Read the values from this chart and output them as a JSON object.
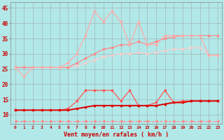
{
  "xlabel": "Vent moyen/en rafales ( km/h )",
  "background_color": "#b2e8e8",
  "grid_color": "#999999",
  "x": [
    0,
    1,
    2,
    3,
    4,
    5,
    6,
    7,
    8,
    9,
    10,
    11,
    12,
    13,
    14,
    15,
    16,
    17,
    18,
    19,
    20,
    21,
    22,
    23
  ],
  "line1_spiky": [
    25.5,
    22.5,
    25.5,
    25.5,
    25.5,
    25.5,
    27,
    30,
    36,
    44,
    40.5,
    44,
    40.5,
    33,
    40.5,
    33,
    33,
    36,
    36,
    36,
    36,
    36,
    29.5,
    29.5
  ],
  "line2_mid": [
    25.5,
    25.5,
    25.5,
    25.5,
    25.5,
    25.5,
    25.5,
    27,
    28.5,
    30,
    31.5,
    32,
    33,
    33,
    34,
    33,
    34,
    35,
    35.5,
    36,
    36,
    36,
    36,
    36
  ],
  "line3_smooth": [
    25.5,
    25.5,
    25.5,
    25.5,
    25.5,
    25.5,
    25.5,
    26,
    27,
    28,
    29,
    29.5,
    30,
    30,
    30.5,
    30,
    30.5,
    31,
    31.5,
    31.5,
    32,
    32,
    29.5,
    29.5
  ],
  "line4_spiky_red": [
    11.5,
    11.5,
    11.5,
    11.5,
    11.5,
    11.5,
    12,
    14.5,
    18,
    18,
    18,
    18,
    14.5,
    18,
    13,
    13,
    14,
    18,
    14,
    14.5,
    14.5,
    14.5,
    14.5,
    14.5
  ],
  "line5_smooth_red": [
    11.5,
    11.5,
    11.5,
    11.5,
    11.5,
    11.5,
    11.5,
    12,
    12.5,
    13,
    13,
    13,
    13,
    13,
    13,
    13,
    13,
    13.5,
    14,
    14,
    14.5,
    14.5,
    14.5,
    14.5
  ],
  "line6_dashed": [
    8,
    8,
    8,
    8,
    8,
    8,
    8,
    8,
    8,
    8,
    8,
    8,
    8,
    8,
    8,
    8,
    8,
    8,
    8,
    8,
    8,
    8,
    8,
    8
  ],
  "color_spiky_pink": "#ffaaaa",
  "color_mid_pink": "#ff8888",
  "color_smooth_pink": "#ffcccc",
  "color_dark_red": "#dd0000",
  "color_spiky_red": "#ff5555",
  "color_dashed": "#ff8888",
  "xlim": [
    -0.5,
    23.5
  ],
  "ylim": [
    7,
    47
  ],
  "yticks": [
    10,
    15,
    20,
    25,
    30,
    35,
    40,
    45
  ],
  "xticks": [
    0,
    1,
    2,
    3,
    4,
    5,
    6,
    7,
    8,
    9,
    10,
    11,
    12,
    13,
    14,
    15,
    16,
    17,
    18,
    19,
    20,
    21,
    22,
    23
  ]
}
